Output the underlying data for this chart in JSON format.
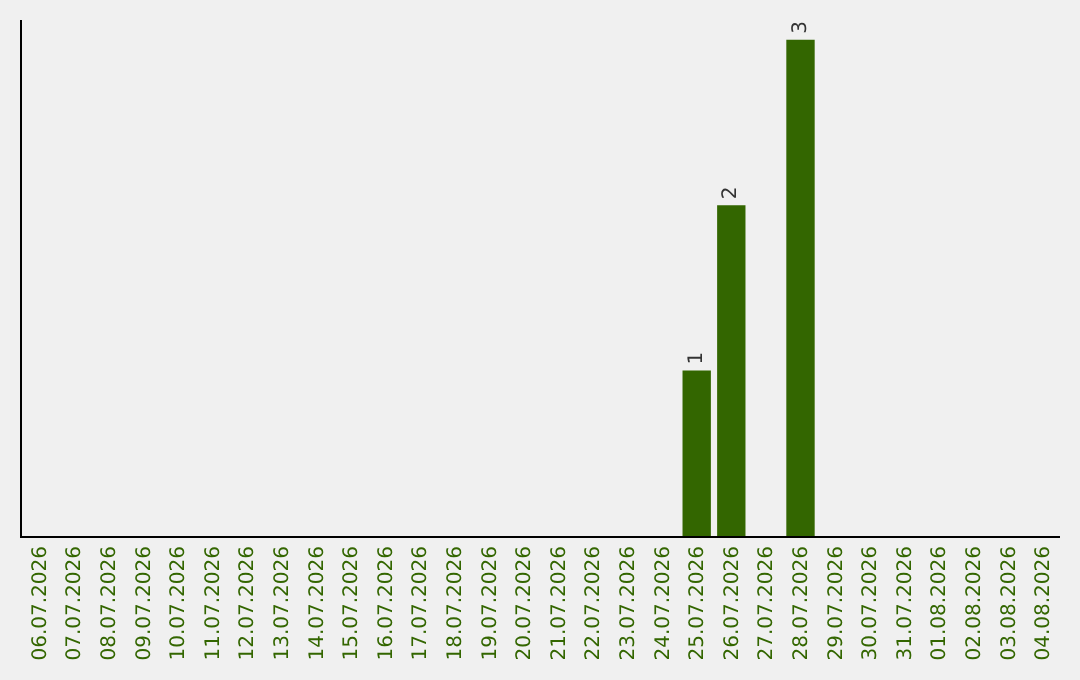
{
  "chart_data": {
    "type": "bar",
    "categories": [
      "06.07.2026",
      "07.07.2026",
      "08.07.2026",
      "09.07.2026",
      "10.07.2026",
      "11.07.2026",
      "12.07.2026",
      "13.07.2026",
      "14.07.2026",
      "15.07.2026",
      "16.07.2026",
      "17.07.2026",
      "18.07.2026",
      "19.07.2026",
      "20.07.2026",
      "21.07.2026",
      "22.07.2026",
      "23.07.2026",
      "24.07.2026",
      "25.07.2026",
      "26.07.2026",
      "27.07.2026",
      "28.07.2026",
      "29.07.2026",
      "30.07.2026",
      "31.07.2026",
      "01.08.2026",
      "02.08.2026",
      "03.08.2026",
      "04.08.2026"
    ],
    "values": [
      null,
      null,
      null,
      null,
      null,
      null,
      null,
      null,
      null,
      null,
      null,
      null,
      null,
      null,
      null,
      null,
      null,
      null,
      null,
      1,
      2,
      null,
      3,
      null,
      null,
      null,
      null,
      null,
      null,
      null
    ],
    "data_labels": true,
    "color": "#336600",
    "tick_labels": "x",
    "grid": false
  }
}
